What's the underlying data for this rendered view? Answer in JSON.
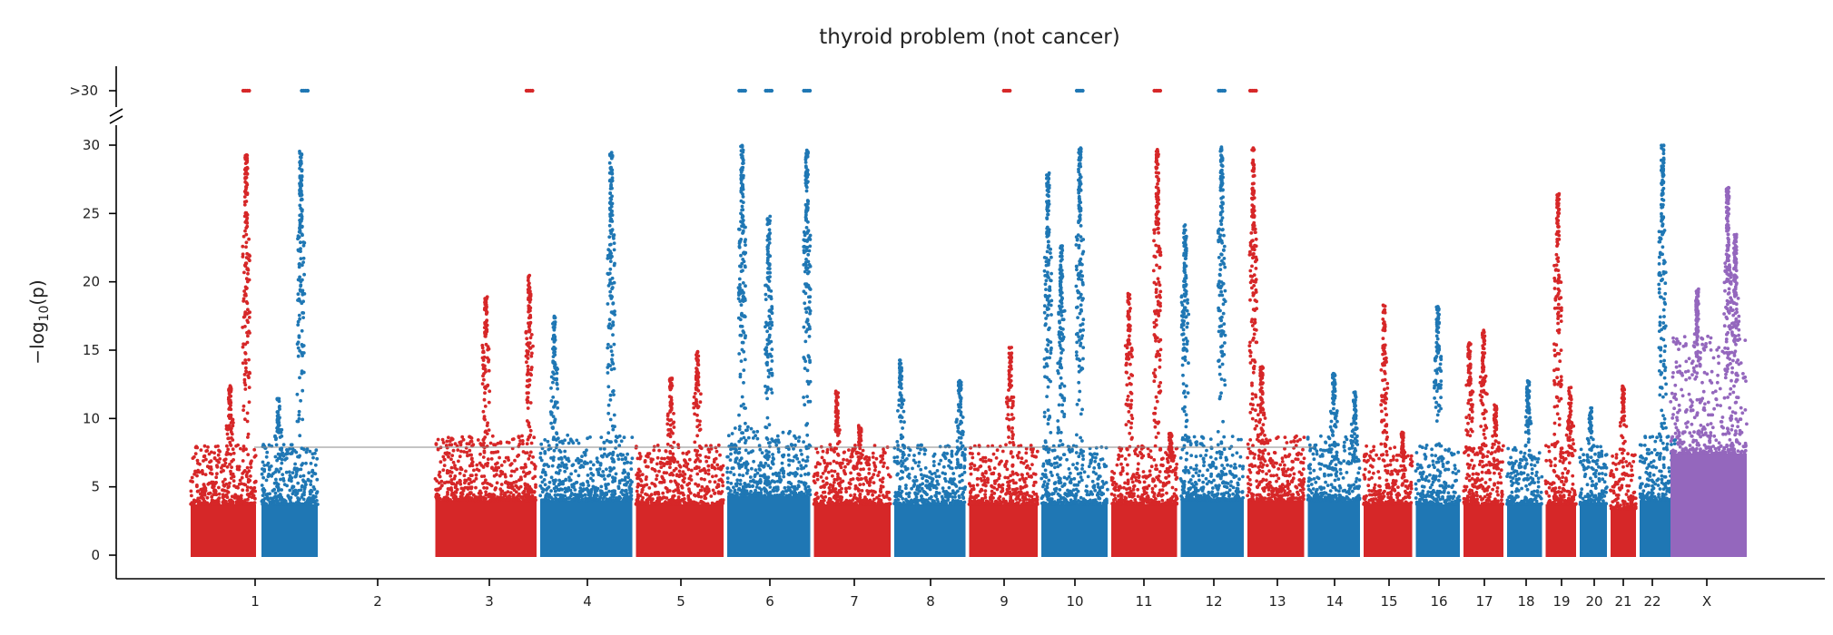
{
  "chart_data": {
    "type": "scatter",
    "title": "thyroid problem (not cancer)",
    "xlabel": "",
    "ylabel": "−log10(p)",
    "ylim": [
      0,
      30
    ],
    "y_ticks": [
      "0",
      "5",
      "10",
      "15",
      "20",
      "25",
      "30"
    ],
    "overflow_tick_label": ">30",
    "significance_line": 7.9,
    "grid": false,
    "legend": "none",
    "colors": {
      "odd": "#d62728",
      "even": "#1f77b4",
      "X": "#9467bd",
      "threshold": "#888888"
    },
    "chromosomes": [
      {
        "label": "1",
        "base": 6.0,
        "peaks": [
          {
            "pos": 0.85,
            "y": 29.3
          },
          {
            "pos": 0.6,
            "y": 12.5
          }
        ]
      },
      {
        "label": "2",
        "base": 6.0,
        "peaks": [
          {
            "pos": 0.7,
            "y": 29.6
          },
          {
            "pos": 0.3,
            "y": 11.5
          }
        ]
      },
      {
        "label": "3",
        "base": 6.5,
        "peaks": [
          {
            "pos": 0.5,
            "y": 19.2
          },
          {
            "pos": 0.93,
            "y": 20.5
          }
        ]
      },
      {
        "label": "4",
        "base": 6.5,
        "peaks": [
          {
            "pos": 0.15,
            "y": 17.5
          },
          {
            "pos": 0.77,
            "y": 29.5
          }
        ]
      },
      {
        "label": "5",
        "base": 6.0,
        "peaks": [
          {
            "pos": 0.7,
            "y": 15.0
          },
          {
            "pos": 0.4,
            "y": 13.0
          }
        ]
      },
      {
        "label": "6",
        "base": 7.0,
        "peaks": [
          {
            "pos": 0.18,
            "y": 30.0
          },
          {
            "pos": 0.5,
            "y": 24.8
          },
          {
            "pos": 0.96,
            "y": 29.8
          }
        ]
      },
      {
        "label": "7",
        "base": 6.0,
        "peaks": [
          {
            "pos": 0.3,
            "y": 12.0
          },
          {
            "pos": 0.6,
            "y": 9.5
          }
        ]
      },
      {
        "label": "8",
        "base": 6.0,
        "peaks": [
          {
            "pos": 0.09,
            "y": 14.3
          },
          {
            "pos": 0.92,
            "y": 12.8
          }
        ]
      },
      {
        "label": "9",
        "base": 6.0,
        "peaks": [
          {
            "pos": 0.6,
            "y": 15.2
          }
        ]
      },
      {
        "label": "10",
        "base": 6.0,
        "peaks": [
          {
            "pos": 0.1,
            "y": 28.0
          },
          {
            "pos": 0.58,
            "y": 29.8
          },
          {
            "pos": 0.3,
            "y": 22.9
          }
        ]
      },
      {
        "label": "11",
        "base": 6.0,
        "peaks": [
          {
            "pos": 0.27,
            "y": 19.2
          },
          {
            "pos": 0.7,
            "y": 29.8
          },
          {
            "pos": 0.9,
            "y": 9.0
          }
        ]
      },
      {
        "label": "12",
        "base": 6.5,
        "peaks": [
          {
            "pos": 0.07,
            "y": 24.2
          },
          {
            "pos": 0.65,
            "y": 30.0
          }
        ]
      },
      {
        "label": "13",
        "base": 6.5,
        "peaks": [
          {
            "pos": 0.1,
            "y": 29.9
          },
          {
            "pos": 0.25,
            "y": 13.8
          }
        ]
      },
      {
        "label": "14",
        "base": 6.5,
        "peaks": [
          {
            "pos": 0.5,
            "y": 13.3
          },
          {
            "pos": 0.9,
            "y": 12.0
          }
        ]
      },
      {
        "label": "15",
        "base": 6.0,
        "peaks": [
          {
            "pos": 0.42,
            "y": 18.3
          },
          {
            "pos": 0.8,
            "y": 9.0
          }
        ]
      },
      {
        "label": "16",
        "base": 6.0,
        "peaks": [
          {
            "pos": 0.5,
            "y": 18.2
          }
        ]
      },
      {
        "label": "17",
        "base": 6.0,
        "peaks": [
          {
            "pos": 0.15,
            "y": 15.6
          },
          {
            "pos": 0.5,
            "y": 16.6
          },
          {
            "pos": 0.8,
            "y": 11.0
          }
        ]
      },
      {
        "label": "18",
        "base": 6.0,
        "peaks": [
          {
            "pos": 0.6,
            "y": 12.8
          }
        ]
      },
      {
        "label": "19",
        "base": 6.0,
        "peaks": [
          {
            "pos": 0.4,
            "y": 26.5
          },
          {
            "pos": 0.8,
            "y": 12.3
          }
        ]
      },
      {
        "label": "20",
        "base": 6.0,
        "peaks": [
          {
            "pos": 0.4,
            "y": 10.8
          }
        ]
      },
      {
        "label": "21",
        "base": 5.5,
        "peaks": [
          {
            "pos": 0.5,
            "y": 12.4
          }
        ]
      },
      {
        "label": "22",
        "base": 6.5,
        "peaks": [
          {
            "pos": 0.6,
            "y": 30.0
          }
        ]
      },
      {
        "label": "X",
        "base": 12.0,
        "peaks": [
          {
            "pos": 0.75,
            "y": 26.9
          },
          {
            "pos": 0.85,
            "y": 23.6
          },
          {
            "pos": 0.35,
            "y": 19.5
          }
        ]
      }
    ],
    "overflow_points": [
      {
        "chrom": "1",
        "pos": 0.85
      },
      {
        "chrom": "2",
        "pos": 0.77
      },
      {
        "chrom": "3",
        "pos": 0.93
      },
      {
        "chrom": "6",
        "pos": 0.18
      },
      {
        "chrom": "6",
        "pos": 0.5
      },
      {
        "chrom": "6",
        "pos": 0.96
      },
      {
        "chrom": "9",
        "pos": 0.55
      },
      {
        "chrom": "10",
        "pos": 0.58
      },
      {
        "chrom": "11",
        "pos": 0.7
      },
      {
        "chrom": "12",
        "pos": 0.65
      },
      {
        "chrom": "13",
        "pos": 0.1
      }
    ]
  }
}
